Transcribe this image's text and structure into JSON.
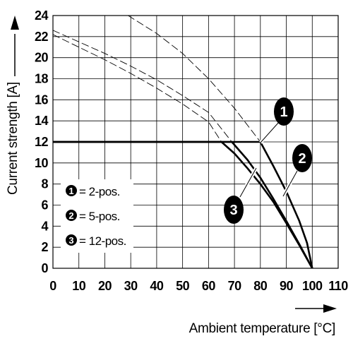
{
  "chart_data": {
    "type": "line",
    "xlabel": "Ambient temperature [°C]",
    "ylabel": "Current strength [A]",
    "xlim": [
      0,
      110
    ],
    "ylim": [
      0,
      24
    ],
    "x_ticks": [
      "0",
      "10",
      "20",
      "30",
      "40",
      "50",
      "60",
      "70",
      "80",
      "90",
      "100",
      "110"
    ],
    "y_ticks": [
      "0",
      "2",
      "4",
      "6",
      "8",
      "10",
      "12",
      "14",
      "16",
      "18",
      "20",
      "22",
      "24"
    ],
    "grid": true,
    "series": [
      {
        "id": "1",
        "name": "2-pos.",
        "style": "solid",
        "points": [
          [
            0,
            12
          ],
          [
            80,
            12
          ],
          [
            85,
            9.7
          ],
          [
            90,
            7.3
          ],
          [
            95,
            4.5
          ],
          [
            98,
            2.4
          ],
          [
            100,
            0
          ]
        ]
      },
      {
        "id": "2",
        "name": "5-pos.",
        "style": "solid",
        "points": [
          [
            0,
            12
          ],
          [
            69,
            12
          ],
          [
            75,
            10.3
          ],
          [
            80,
            8.6
          ],
          [
            85,
            6.6
          ],
          [
            90,
            4.5
          ],
          [
            95,
            2.3
          ],
          [
            100,
            0
          ]
        ]
      },
      {
        "id": "3",
        "name": "12-pos.",
        "style": "solid",
        "points": [
          [
            0,
            12
          ],
          [
            65,
            12
          ],
          [
            70,
            10.9
          ],
          [
            75,
            9.5
          ],
          [
            80,
            8
          ],
          [
            85,
            6.3
          ],
          [
            90,
            4.3
          ],
          [
            95,
            2.2
          ],
          [
            100,
            0
          ]
        ]
      },
      {
        "id": "1",
        "style": "dashed",
        "points": [
          [
            29,
            24
          ],
          [
            40,
            22.3
          ],
          [
            50,
            20.4
          ],
          [
            60,
            18
          ],
          [
            70,
            15.2
          ],
          [
            80,
            12
          ]
        ]
      },
      {
        "id": "2",
        "style": "dashed",
        "points": [
          [
            0,
            22.6
          ],
          [
            10,
            21.5
          ],
          [
            20,
            20.4
          ],
          [
            30,
            19.2
          ],
          [
            40,
            17.9
          ],
          [
            50,
            16.4
          ],
          [
            60,
            14.8
          ],
          [
            69,
            12
          ]
        ]
      },
      {
        "id": "3",
        "style": "dashed",
        "points": [
          [
            0,
            22.2
          ],
          [
            10,
            21
          ],
          [
            20,
            19.8
          ],
          [
            30,
            18.5
          ],
          [
            40,
            17.1
          ],
          [
            50,
            15.6
          ],
          [
            60,
            13.9
          ],
          [
            65,
            12
          ]
        ]
      }
    ],
    "legend": {
      "placement": "bottom-left",
      "entries": [
        {
          "badge": "1",
          "label": "= 2-pos."
        },
        {
          "badge": "2",
          "label": "= 5-pos."
        },
        {
          "badge": "3",
          "label": "= 12-pos."
        }
      ]
    },
    "callouts": [
      {
        "label": "1",
        "at": [
          80,
          12
        ]
      },
      {
        "label": "2",
        "at": [
          88,
          6.7
        ]
      },
      {
        "label": "3",
        "at": [
          75,
          9.5
        ]
      }
    ]
  }
}
